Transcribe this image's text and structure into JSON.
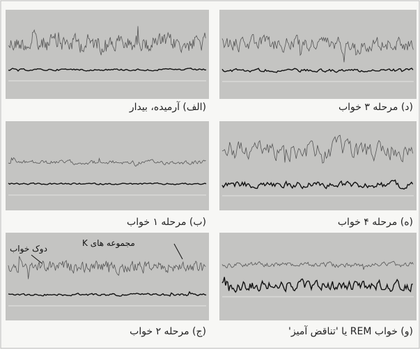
{
  "panels": [
    {
      "caption": "(الف) آرمیده، بیدار"
    },
    {
      "caption": "(ب) مرحله ۱ خواب"
    },
    {
      "caption": "(ج) مرحله ۲ خواب",
      "annotations": [
        "مجموعه های K",
        "دوک خواب"
      ]
    },
    {
      "caption": "(د) مرحله ۳ خواب"
    },
    {
      "caption": "(ه) مرحله ۴ خواب"
    },
    {
      "caption": "(و) خواب REM یا 'تناقض آمیز'"
    }
  ]
}
